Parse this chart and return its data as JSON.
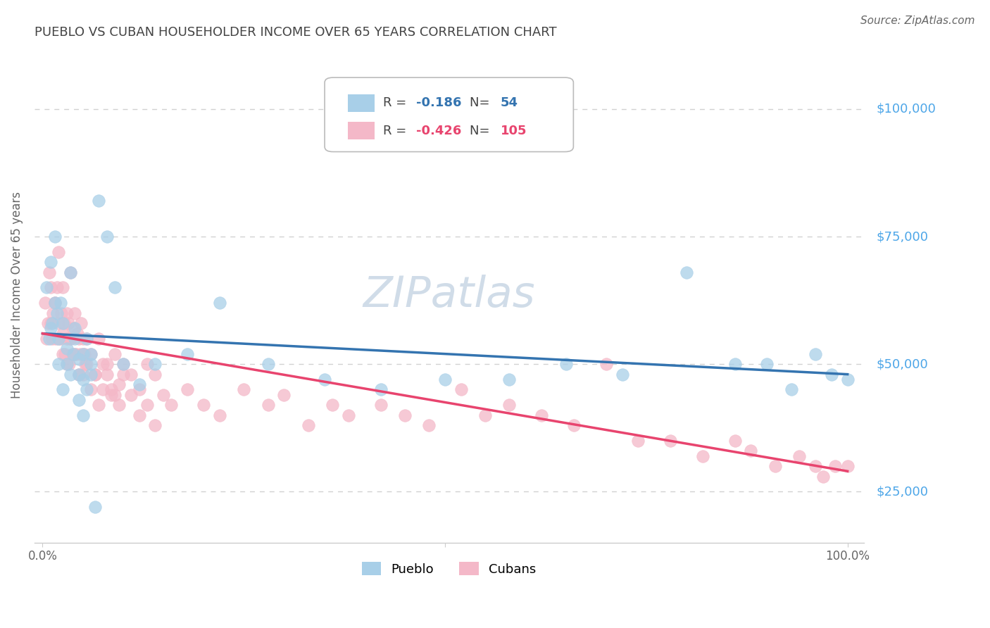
{
  "title": "PUEBLO VS CUBAN HOUSEHOLDER INCOME OVER 65 YEARS CORRELATION CHART",
  "source": "Source: ZipAtlas.com",
  "ylabel": "Householder Income Over 65 years",
  "xlim": [
    -0.01,
    1.02
  ],
  "ylim": [
    15000,
    112000
  ],
  "ytick_positions": [
    25000,
    50000,
    75000,
    100000
  ],
  "ytick_labels": [
    "$25,000",
    "$50,000",
    "$75,000",
    "$100,000"
  ],
  "xtick_positions": [
    0.0,
    0.5,
    1.0
  ],
  "xtick_labels": [
    "0.0%",
    "",
    "100.0%"
  ],
  "pueblo_color": "#a8cfe8",
  "cuban_color": "#f4b8c8",
  "pueblo_line_color": "#3474b0",
  "cuban_line_color": "#e8446e",
  "legend_r_pueblo": "-0.186",
  "legend_n_pueblo": "54",
  "legend_r_cuban": "-0.426",
  "legend_n_cuban": "105",
  "background_color": "#ffffff",
  "grid_color": "#cccccc",
  "title_color": "#444444",
  "axis_label_color": "#666666",
  "right_label_color": "#4da6e8",
  "watermark_color": "#d0dce8",
  "pueblo_line_intercept": 56000,
  "pueblo_line_slope": -8000,
  "cuban_line_intercept": 56000,
  "cuban_line_slope": -27000,
  "pueblo_x": [
    0.005,
    0.008,
    0.01,
    0.012,
    0.015,
    0.018,
    0.02,
    0.022,
    0.025,
    0.03,
    0.035,
    0.038,
    0.04,
    0.045,
    0.05,
    0.055,
    0.06,
    0.07,
    0.08,
    0.09,
    0.01,
    0.015,
    0.02,
    0.025,
    0.03,
    0.035,
    0.04,
    0.045,
    0.05,
    0.06,
    0.1,
    0.12,
    0.14,
    0.18,
    0.22,
    0.28,
    0.35,
    0.42,
    0.5,
    0.58,
    0.65,
    0.72,
    0.8,
    0.86,
    0.9,
    0.93,
    0.96,
    0.98,
    1.0,
    0.045,
    0.05,
    0.055,
    0.06,
    0.065
  ],
  "pueblo_y": [
    65000,
    55000,
    70000,
    58000,
    75000,
    60000,
    55000,
    62000,
    58000,
    50000,
    68000,
    52000,
    57000,
    48000,
    52000,
    55000,
    50000,
    82000,
    75000,
    65000,
    57000,
    62000,
    50000,
    45000,
    53000,
    48000,
    55000,
    51000,
    47000,
    52000,
    50000,
    46000,
    50000,
    52000,
    62000,
    50000,
    47000,
    45000,
    47000,
    47000,
    50000,
    48000,
    68000,
    50000,
    50000,
    45000,
    52000,
    48000,
    47000,
    43000,
    40000,
    45000,
    48000,
    22000
  ],
  "cuban_x": [
    0.003,
    0.005,
    0.007,
    0.008,
    0.01,
    0.012,
    0.013,
    0.015,
    0.016,
    0.018,
    0.02,
    0.02,
    0.022,
    0.023,
    0.025,
    0.025,
    0.027,
    0.028,
    0.03,
    0.03,
    0.032,
    0.033,
    0.035,
    0.035,
    0.037,
    0.038,
    0.04,
    0.042,
    0.043,
    0.045,
    0.045,
    0.047,
    0.048,
    0.05,
    0.05,
    0.052,
    0.053,
    0.055,
    0.06,
    0.065,
    0.07,
    0.075,
    0.08,
    0.085,
    0.09,
    0.095,
    0.1,
    0.11,
    0.12,
    0.13,
    0.14,
    0.15,
    0.16,
    0.18,
    0.2,
    0.22,
    0.25,
    0.28,
    0.3,
    0.33,
    0.36,
    0.38,
    0.42,
    0.45,
    0.48,
    0.52,
    0.55,
    0.58,
    0.62,
    0.66,
    0.7,
    0.74,
    0.78,
    0.82,
    0.86,
    0.88,
    0.91,
    0.94,
    0.96,
    0.97,
    0.985,
    1.0,
    0.01,
    0.015,
    0.02,
    0.025,
    0.03,
    0.035,
    0.04,
    0.045,
    0.05,
    0.055,
    0.06,
    0.065,
    0.07,
    0.075,
    0.08,
    0.085,
    0.09,
    0.095,
    0.1,
    0.11,
    0.12,
    0.13,
    0.14
  ],
  "cuban_y": [
    62000,
    55000,
    58000,
    68000,
    65000,
    55000,
    60000,
    62000,
    55000,
    65000,
    58000,
    72000,
    55000,
    60000,
    65000,
    56000,
    58000,
    52000,
    60000,
    55000,
    58000,
    50000,
    68000,
    55000,
    52000,
    57000,
    60000,
    52000,
    56000,
    55000,
    48000,
    52000,
    58000,
    55000,
    48000,
    52000,
    50000,
    55000,
    52000,
    48000,
    55000,
    50000,
    48000,
    44000,
    52000,
    46000,
    50000,
    48000,
    45000,
    50000,
    48000,
    44000,
    42000,
    45000,
    42000,
    40000,
    45000,
    42000,
    44000,
    38000,
    42000,
    40000,
    42000,
    40000,
    38000,
    45000,
    40000,
    42000,
    40000,
    38000,
    50000,
    35000,
    35000,
    32000,
    35000,
    33000,
    30000,
    32000,
    30000,
    28000,
    30000,
    30000,
    58000,
    62000,
    55000,
    52000,
    50000,
    55000,
    52000,
    48000,
    52000,
    50000,
    45000,
    48000,
    42000,
    45000,
    50000,
    45000,
    44000,
    42000,
    48000,
    44000,
    40000,
    42000,
    38000
  ]
}
